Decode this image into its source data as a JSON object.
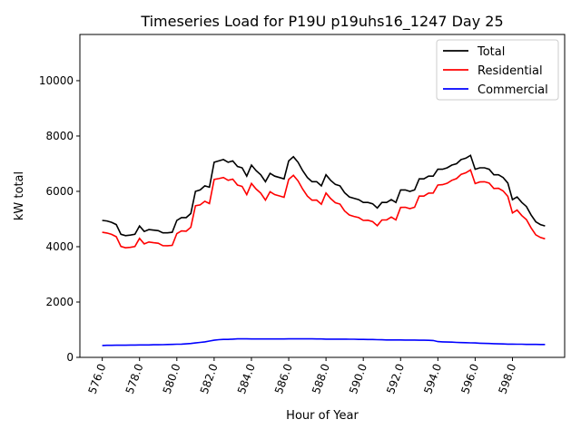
{
  "chart_data": {
    "type": "line",
    "title": "Timeseries Load for P19U p19uhs16_1247  Day 25",
    "xlabel": "Hour of Year",
    "ylabel": "kW total",
    "xlim": [
      574.8,
      600.8
    ],
    "ylim": [
      0,
      11670
    ],
    "x_start": 576,
    "x_step": 0.25,
    "x_ticks": [
      576,
      578,
      580,
      582,
      584,
      586,
      588,
      590,
      592,
      594,
      596,
      598
    ],
    "x_tick_labels": [
      "576.0",
      "578.0",
      "580.0",
      "582.0",
      "584.0",
      "586.0",
      "588.0",
      "590.0",
      "592.0",
      "594.0",
      "596.0",
      "598.0"
    ],
    "y_ticks": [
      0,
      2000,
      4000,
      6000,
      8000,
      10000
    ],
    "y_tick_labels": [
      "0",
      "2000",
      "4000",
      "6000",
      "8000",
      "10000"
    ],
    "grid": false,
    "legend_position": "top-right",
    "series": [
      {
        "name": "Total",
        "color": "#000000",
        "values": [
          4950,
          4930,
          4880,
          4800,
          4450,
          4400,
          4420,
          4450,
          4750,
          4550,
          4620,
          4600,
          4580,
          4500,
          4500,
          4520,
          4950,
          5050,
          5050,
          5200,
          6000,
          6050,
          6200,
          6150,
          7050,
          7100,
          7150,
          7050,
          7100,
          6900,
          6850,
          6550,
          6950,
          6750,
          6600,
          6350,
          6650,
          6550,
          6500,
          6450,
          7100,
          7250,
          7050,
          6750,
          6500,
          6350,
          6350,
          6200,
          6600,
          6400,
          6250,
          6200,
          5950,
          5800,
          5750,
          5700,
          5600,
          5600,
          5550,
          5400,
          5600,
          5600,
          5700,
          5600,
          6050,
          6050,
          6000,
          6050,
          6450,
          6450,
          6550,
          6550,
          6800,
          6800,
          6850,
          6950,
          7000,
          7150,
          7200,
          7300,
          6800,
          6850,
          6850,
          6800,
          6600,
          6600,
          6500,
          6300,
          5700,
          5800,
          5600,
          5450,
          5150,
          4900,
          4800,
          4750
        ]
      },
      {
        "name": "Residential",
        "color": "#ff0000",
        "values": [
          4520,
          4495,
          4445,
          4360,
          4010,
          3960,
          3975,
          4005,
          4300,
          4100,
          4170,
          4145,
          4125,
          4040,
          4035,
          4050,
          4475,
          4570,
          4560,
          4700,
          5480,
          5510,
          5640,
          5560,
          6430,
          6460,
          6500,
          6400,
          6440,
          6230,
          6180,
          5880,
          6285,
          6085,
          5935,
          5685,
          5985,
          5885,
          5835,
          5785,
          6430,
          6580,
          6380,
          6080,
          5830,
          5680,
          5685,
          5535,
          5940,
          5740,
          5590,
          5540,
          5290,
          5145,
          5095,
          5050,
          4950,
          4955,
          4905,
          4760,
          4965,
          4970,
          5070,
          4970,
          5420,
          5425,
          5375,
          5425,
          5830,
          5830,
          5935,
          5940,
          6230,
          6240,
          6295,
          6400,
          6460,
          6615,
          6670,
          6775,
          6280,
          6340,
          6345,
          6300,
          6105,
          6110,
          6015,
          5820,
          5220,
          5325,
          5125,
          4980,
          4680,
          4430,
          4335,
          4285
        ]
      },
      {
        "name": "Commercial",
        "color": "#0000ff",
        "values": [
          430,
          435,
          435,
          440,
          440,
          440,
          445,
          445,
          450,
          450,
          450,
          455,
          455,
          460,
          465,
          470,
          475,
          480,
          490,
          500,
          520,
          540,
          560,
          590,
          620,
          640,
          650,
          650,
          660,
          670,
          670,
          670,
          665,
          665,
          665,
          665,
          665,
          665,
          665,
          665,
          670,
          670,
          670,
          670,
          670,
          670,
          665,
          665,
          660,
          660,
          660,
          660,
          660,
          655,
          655,
          650,
          650,
          645,
          645,
          640,
          635,
          630,
          630,
          630,
          630,
          625,
          625,
          625,
          620,
          620,
          615,
          610,
          570,
          560,
          555,
          550,
          540,
          535,
          530,
          525,
          520,
          510,
          505,
          500,
          495,
          490,
          485,
          480,
          480,
          475,
          475,
          470,
          470,
          470,
          465,
          465
        ]
      }
    ]
  }
}
